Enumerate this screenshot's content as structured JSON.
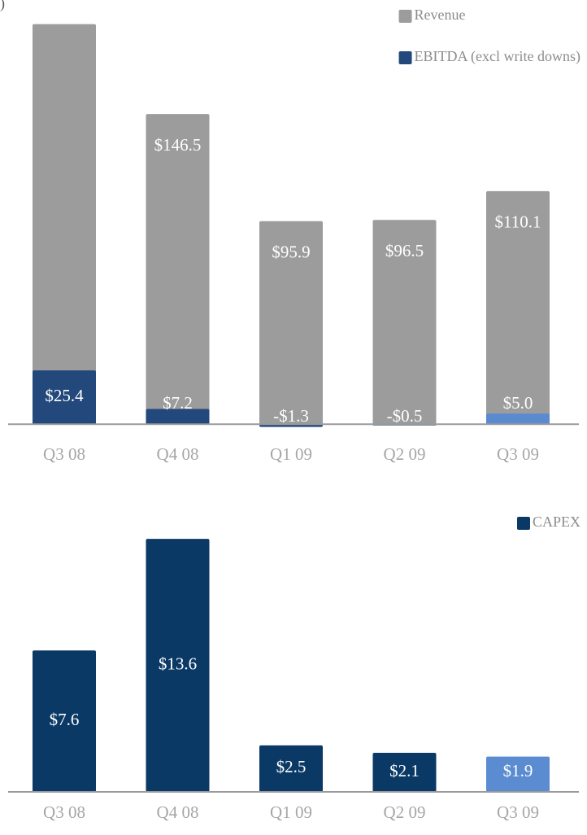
{
  "chart_data": [
    {
      "type": "bar",
      "title": ")",
      "categories": [
        "Q3 08",
        "Q4 08",
        "Q1 09",
        "Q2 09",
        "Q3 09"
      ],
      "series": [
        {
          "name": "Revenue",
          "color": "#9c9c9c",
          "values": [
            189,
            146.5,
            95.9,
            96.5,
            110.1
          ],
          "value_labels": [
            null,
            "$146.5",
            "$95.9",
            "$96.5",
            "$110.1"
          ]
        },
        {
          "name": "EBITDA (excl write downs)",
          "color": "#23497c",
          "colors": [
            "#23497c",
            "#23497c",
            "#23497c",
            "#23497c",
            "#5a8ad0"
          ],
          "values": [
            25.4,
            7.2,
            -1.3,
            -0.5,
            5.0
          ],
          "value_labels": [
            "$25.4",
            "$7.2",
            "-$1.3",
            "-$0.5",
            "$5.0"
          ]
        }
      ],
      "ylim": [
        -3,
        190
      ],
      "legend": "upper right"
    },
    {
      "type": "bar",
      "categories": [
        "Q3 08",
        "Q4 08",
        "Q1 09",
        "Q2 09",
        "Q3 09"
      ],
      "series": [
        {
          "name": "CAPEX",
          "color": "#0b3966",
          "colors": [
            "#0b3966",
            "#0b3966",
            "#0b3966",
            "#0b3966",
            "#5b8bd0"
          ],
          "values": [
            7.6,
            13.6,
            2.5,
            2.1,
            1.9
          ],
          "value_labels": [
            "$7.6",
            "$13.6",
            "$2.5",
            "$2.1",
            "$1.9"
          ]
        }
      ],
      "ylim": [
        0,
        14
      ],
      "legend": "upper right"
    }
  ]
}
